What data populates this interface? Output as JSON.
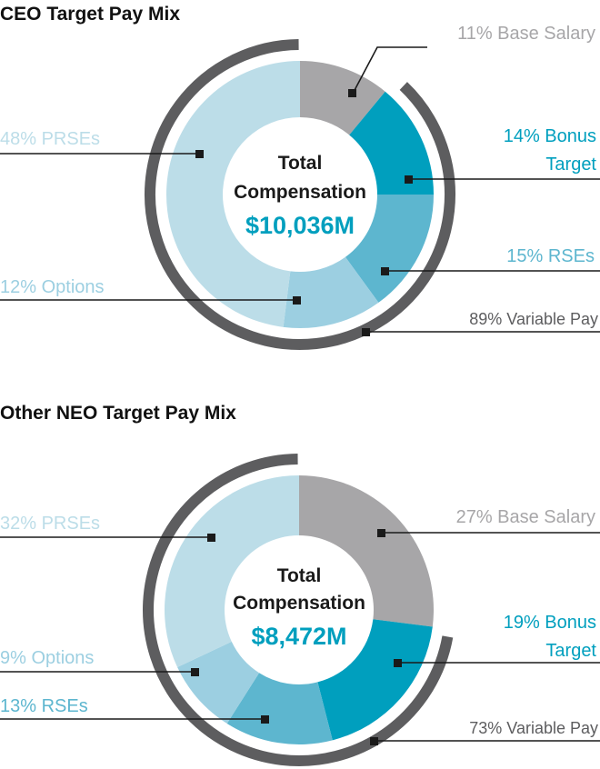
{
  "colors": {
    "base_salary": "#a7a6a8",
    "bonus": "#009fbe",
    "rses": "#5db6cf",
    "options": "#9ccfe1",
    "prses": "#bcdde8",
    "variable_ring": "#5d5d5f",
    "leader": "#1a1a1a",
    "total_value": "#009fbe"
  },
  "chart_data": [
    {
      "type": "pie",
      "title": "CEO Target Pay Mix",
      "center_label_1": "Total",
      "center_label_2": "Compensation",
      "total": "$10,036M",
      "slices": [
        {
          "name": "Base Salary",
          "value": 11,
          "label": "11% Base Salary",
          "color": "#a7a6a8"
        },
        {
          "name": "Bonus Target",
          "value": 14,
          "label_1": "14% Bonus",
          "label_2": "Target",
          "color": "#009fbe"
        },
        {
          "name": "RSEs",
          "value": 15,
          "label": "15% RSEs",
          "color": "#5db6cf"
        },
        {
          "name": "Options",
          "value": 12,
          "label": "12% Options",
          "color": "#9ccfe1"
        },
        {
          "name": "PRSEs",
          "value": 48,
          "label": "48% PRSEs",
          "color": "#bcdde8"
        }
      ],
      "variable_pay": {
        "value": 89,
        "label": "89% Variable Pay"
      }
    },
    {
      "type": "pie",
      "title": "Other NEO Target Pay Mix",
      "center_label_1": "Total",
      "center_label_2": "Compensation",
      "total": "$8,472M",
      "slices": [
        {
          "name": "Base Salary",
          "value": 27,
          "label": "27% Base Salary",
          "color": "#a7a6a8"
        },
        {
          "name": "Bonus Target",
          "value": 19,
          "label_1": "19% Bonus",
          "label_2": "Target",
          "color": "#009fbe"
        },
        {
          "name": "RSEs",
          "value": 13,
          "label": "13% RSEs",
          "color": "#5db6cf"
        },
        {
          "name": "Options",
          "value": 9,
          "label": "9% Options",
          "color": "#9ccfe1"
        },
        {
          "name": "PRSEs",
          "value": 32,
          "label": "32% PRSEs",
          "color": "#bcdde8"
        }
      ],
      "variable_pay": {
        "value": 73,
        "label": "73% Variable Pay"
      }
    }
  ]
}
